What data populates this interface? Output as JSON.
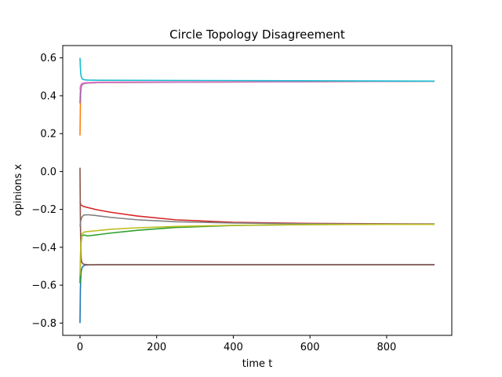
{
  "chart_data": {
    "type": "line",
    "title": "Circle Topology Disagreement",
    "xlabel": "time t",
    "ylabel": "opinions x",
    "xlim": [
      -45,
      970
    ],
    "ylim": [
      -0.865,
      0.665
    ],
    "xticks": [
      0,
      200,
      400,
      600,
      800
    ],
    "xtick_labels": [
      "0",
      "200",
      "400",
      "600",
      "800"
    ],
    "yticks": [
      -0.8,
      -0.6,
      -0.4,
      -0.2,
      0.0,
      0.2,
      0.4,
      0.6
    ],
    "ytick_labels": [
      "−0.8",
      "−0.6",
      "−0.4",
      "−0.2",
      "0.0",
      "0.2",
      "0.4",
      "0.6"
    ],
    "grid": false,
    "legend": "none",
    "series": [
      {
        "color": "#1f77b4",
        "x": [
          0,
          1,
          2,
          3,
          5,
          8,
          12,
          20,
          50,
          925
        ],
        "y": [
          -0.8,
          -0.62,
          -0.56,
          -0.53,
          -0.51,
          -0.5,
          -0.495,
          -0.493,
          -0.492,
          -0.492
        ]
      },
      {
        "color": "#ff7f0e",
        "x": [
          0,
          1,
          2,
          3,
          5,
          8,
          12,
          20,
          50,
          925
        ],
        "y": [
          0.19,
          0.35,
          0.42,
          0.445,
          0.458,
          0.462,
          0.465,
          0.467,
          0.47,
          0.477
        ]
      },
      {
        "color": "#2ca02c",
        "x": [
          0,
          2,
          5,
          10,
          20,
          40,
          80,
          150,
          250,
          400,
          600,
          800,
          925
        ],
        "y": [
          -0.59,
          -0.39,
          -0.34,
          -0.335,
          -0.34,
          -0.335,
          -0.325,
          -0.31,
          -0.295,
          -0.285,
          -0.28,
          -0.278,
          -0.278
        ]
      },
      {
        "color": "#d62728",
        "x": [
          0,
          2,
          5,
          10,
          20,
          40,
          80,
          150,
          250,
          400,
          600,
          800,
          925
        ],
        "y": [
          -0.16,
          -0.175,
          -0.18,
          -0.185,
          -0.19,
          -0.2,
          -0.215,
          -0.235,
          -0.255,
          -0.268,
          -0.274,
          -0.276,
          -0.277
        ]
      },
      {
        "color": "#9467bd",
        "x": [
          0,
          1,
          3,
          6,
          10,
          20,
          50,
          925
        ],
        "y": [
          0.36,
          0.42,
          0.45,
          0.46,
          0.465,
          0.467,
          0.47,
          0.477
        ]
      },
      {
        "color": "#8c564b",
        "x": [
          0,
          1,
          2,
          3,
          5,
          8,
          12,
          20,
          925
        ],
        "y": [
          0.02,
          -0.25,
          -0.4,
          -0.46,
          -0.48,
          -0.488,
          -0.49,
          -0.492,
          -0.492
        ]
      },
      {
        "color": "#e377c2",
        "x": [
          0,
          1,
          3,
          6,
          10,
          20,
          50,
          925
        ],
        "y": [
          0.43,
          0.45,
          0.46,
          0.465,
          0.468,
          0.47,
          0.472,
          0.477
        ]
      },
      {
        "color": "#7f7f7f",
        "x": [
          0,
          2,
          5,
          10,
          20,
          40,
          80,
          150,
          250,
          400,
          600,
          800,
          925
        ],
        "y": [
          -0.29,
          -0.26,
          -0.24,
          -0.23,
          -0.228,
          -0.232,
          -0.242,
          -0.255,
          -0.265,
          -0.272,
          -0.276,
          -0.277,
          -0.277
        ]
      },
      {
        "color": "#bcbd22",
        "x": [
          0,
          2,
          5,
          10,
          20,
          40,
          80,
          150,
          250,
          400,
          600,
          800,
          925
        ],
        "y": [
          -0.55,
          -0.38,
          -0.33,
          -0.32,
          -0.317,
          -0.313,
          -0.305,
          -0.297,
          -0.29,
          -0.284,
          -0.28,
          -0.279,
          -0.279
        ]
      },
      {
        "color": "#17becf",
        "x": [
          0,
          1,
          2,
          4,
          7,
          12,
          20,
          50,
          925
        ],
        "y": [
          0.6,
          0.55,
          0.515,
          0.495,
          0.487,
          0.484,
          0.483,
          0.482,
          0.477
        ]
      }
    ]
  }
}
